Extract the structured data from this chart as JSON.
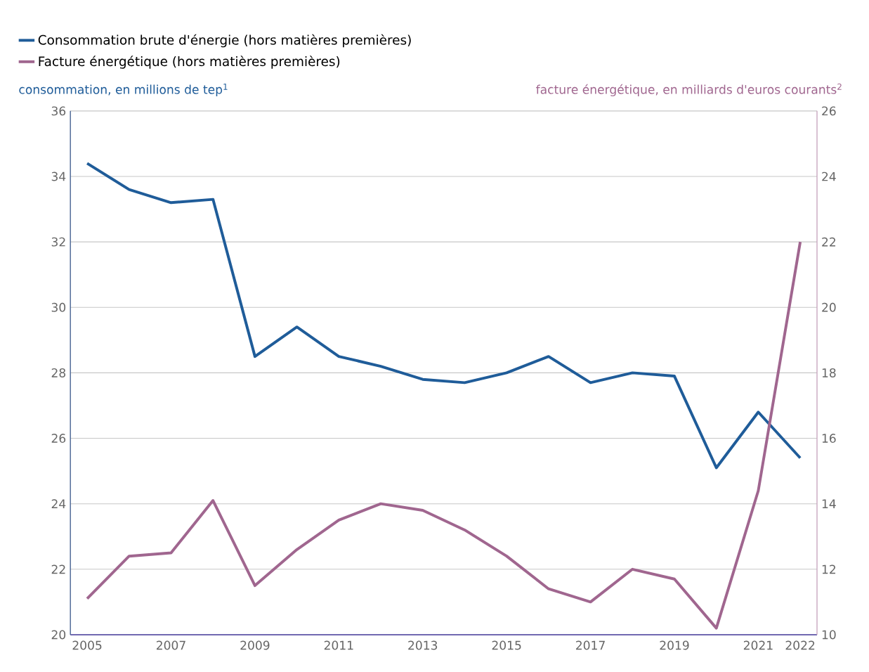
{
  "chart_data": {
    "type": "line",
    "x": [
      2005,
      2006,
      2007,
      2008,
      2009,
      2010,
      2011,
      2012,
      2013,
      2014,
      2015,
      2016,
      2017,
      2018,
      2019,
      2020,
      2021,
      2022
    ],
    "series": [
      {
        "name": "Consommation brute d'énergie (hors matières premières)",
        "color": "#1f5c99",
        "values": [
          34.4,
          33.6,
          33.2,
          33.3,
          28.5,
          29.4,
          28.5,
          28.2,
          27.8,
          27.7,
          28.0,
          28.5,
          27.7,
          28.0,
          27.9,
          25.1,
          26.8,
          25.4
        ]
      },
      {
        "name": "Facture énergétique (hors matières premières)",
        "color": "#a0668f",
        "axis": "y2",
        "values": [
          11.1,
          12.4,
          12.5,
          14.1,
          11.5,
          12.6,
          13.5,
          14.0,
          13.8,
          13.2,
          12.4,
          11.4,
          11.0,
          12.0,
          11.7,
          10.2,
          14.4,
          22.0
        ]
      }
    ],
    "ylabel": "consommation, en millions de tep$^{1}$",
    "y2label": "facture énergétique, en milliards d'euros courants$^{2}$",
    "xlim": [
      2004.6,
      2022.4
    ],
    "xticks": [
      2005,
      2007,
      2009,
      2011,
      2013,
      2015,
      2017,
      2019,
      2021,
      2022
    ],
    "ylim": [
      20,
      36
    ],
    "yticks": [
      20,
      22,
      24,
      26,
      28,
      30,
      32,
      34,
      36
    ],
    "y2lim": [
      10,
      26
    ],
    "y2ticks": [
      10,
      12,
      14,
      16,
      18,
      20,
      22,
      24,
      26
    ],
    "grid": "y",
    "legend": "top left",
    "marker": "none",
    "line_style": "solid"
  }
}
